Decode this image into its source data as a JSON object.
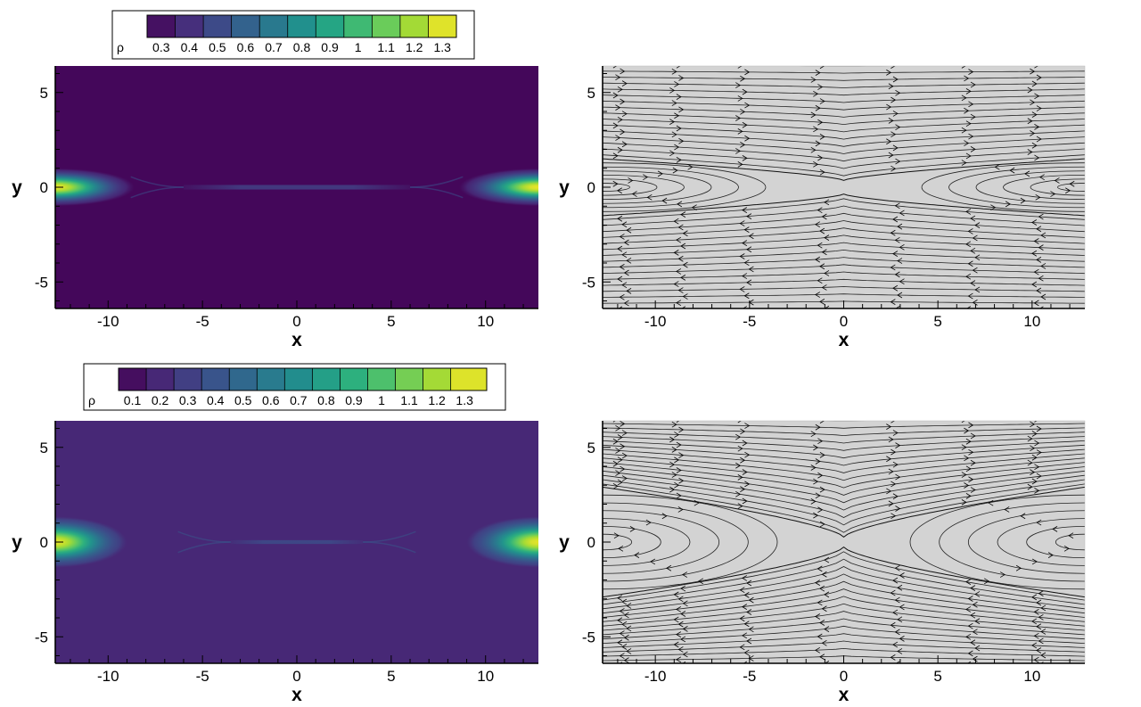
{
  "figure": {
    "description_panels": [
      "density top",
      "streamline top",
      "density bottom",
      "streamline bottom"
    ]
  },
  "chart_data": [
    {
      "type": "heatmap",
      "panel": "density-top",
      "xlabel": "x",
      "ylabel": "y",
      "xlim": [
        -12.8,
        12.8
      ],
      "ylim": [
        -6.4,
        6.4
      ],
      "xticks": [
        -10,
        -5,
        0,
        5,
        10
      ],
      "yticks": [
        -5,
        0,
        5
      ],
      "xtick_labels": [
        "-10",
        "-5",
        "0",
        "5",
        "10"
      ],
      "ytick_labels": [
        "-5",
        "0",
        "5"
      ],
      "colorbar": {
        "variable": "ρ",
        "colormap": "viridis",
        "range": [
          0.25,
          1.35
        ],
        "ticks": [
          0.3,
          0.4,
          0.5,
          0.6,
          0.7,
          0.8,
          0.9,
          1,
          1.1,
          1.2,
          1.3
        ],
        "tick_labels": [
          "0.3",
          "0.4",
          "0.5",
          "0.6",
          "0.7",
          "0.8",
          "0.9",
          "1",
          "1.1",
          "1.2",
          "1.3"
        ]
      },
      "background_value": 0.27,
      "blobs": [
        {
          "center": [
            -12.8,
            0
          ],
          "peak": 1.32,
          "sx": 4.2,
          "sy": 1.0
        },
        {
          "center": [
            12.8,
            0
          ],
          "peak": 1.32,
          "sx": 4.2,
          "sy": 1.0
        }
      ],
      "current_sheet": {
        "x_range": [
          -6,
          6
        ],
        "value": 0.45,
        "halfwidth": 0.12
      }
    },
    {
      "type": "streamline",
      "panel": "streamline-top",
      "xlabel": "x",
      "ylabel": "y",
      "xlim": [
        -12.8,
        12.8
      ],
      "ylim": [
        -6.4,
        6.4
      ],
      "xticks": [
        -10,
        -5,
        0,
        5,
        10
      ],
      "yticks": [
        -5,
        0,
        5
      ],
      "xtick_labels": [
        "-10",
        "-5",
        "0",
        "5",
        "10"
      ],
      "ytick_labels": [
        "-5",
        "0",
        "5"
      ],
      "background_color": "#d3d3d3",
      "separatrix": {
        "island_halfwidth": 1.5,
        "xpoint_halfwidth": 3.0
      },
      "island_center_x": 12.8
    },
    {
      "type": "heatmap",
      "panel": "density-bottom",
      "xlabel": "x",
      "ylabel": "y",
      "xlim": [
        -12.8,
        12.8
      ],
      "ylim": [
        -6.4,
        6.4
      ],
      "xticks": [
        -10,
        -5,
        0,
        5,
        10
      ],
      "yticks": [
        -5,
        0,
        5
      ],
      "xtick_labels": [
        "-10",
        "-5",
        "0",
        "5",
        "10"
      ],
      "ytick_labels": [
        "-5",
        "0",
        "5"
      ],
      "colorbar": {
        "variable": "ρ",
        "colormap": "viridis",
        "range": [
          0.05,
          1.38
        ],
        "ticks": [
          0.1,
          0.2,
          0.3,
          0.4,
          0.5,
          0.6,
          0.7,
          0.8,
          0.9,
          1,
          1.1,
          1.2,
          1.3
        ],
        "tick_labels": [
          "0.1",
          "0.2",
          "0.3",
          "0.4",
          "0.5",
          "0.6",
          "0.7",
          "0.8",
          "0.9",
          "1",
          "1.1",
          "1.2",
          "1.3"
        ]
      },
      "background_value": 0.2,
      "blobs": [
        {
          "center": [
            -12.8,
            0
          ],
          "peak": 1.33,
          "sx": 3.8,
          "sy": 1.35
        },
        {
          "center": [
            12.8,
            0
          ],
          "peak": 1.33,
          "sx": 3.8,
          "sy": 1.35
        }
      ],
      "current_sheet": {
        "x_range": [
          -3.5,
          3.5
        ],
        "value": 0.35,
        "halfwidth": 0.1
      }
    },
    {
      "type": "streamline",
      "panel": "streamline-bottom",
      "xlabel": "x",
      "ylabel": "y",
      "xlim": [
        -12.8,
        12.8
      ],
      "ylim": [
        -6.4,
        6.4
      ],
      "xticks": [
        -10,
        -5,
        0,
        5,
        10
      ],
      "yticks": [
        -5,
        0,
        5
      ],
      "xtick_labels": [
        "-10",
        "-5",
        "0",
        "5",
        "10"
      ],
      "ytick_labels": [
        "-5",
        "0",
        "5"
      ],
      "background_color": "#d3d3d3",
      "separatrix": {
        "island_halfwidth": 2.9,
        "xpoint_halfwidth": 2.2
      },
      "island_center_x": 12.8
    }
  ]
}
